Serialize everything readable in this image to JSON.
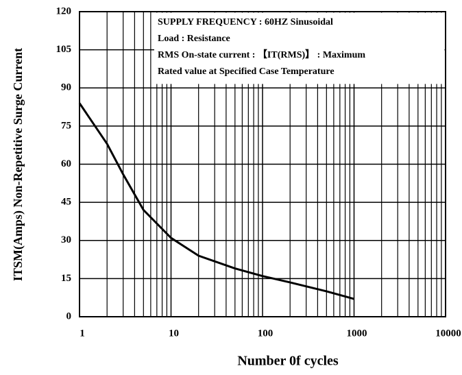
{
  "chart_data": {
    "type": "line",
    "xlabel": "Number 0f cycles",
    "ylabel": "ITSM(Amps) Non-Repetitive Surge Current",
    "annotations": [
      "SUPPLY FREQUENCY : 60HZ Sinusoidal",
      "Load : Resistance",
      "RMS On-state current : 【IT(RMS)】 : Maximum",
      "Rated value at Specified Case Temperature"
    ],
    "xlog": true,
    "grid": true,
    "x": [
      1,
      2,
      3,
      5,
      10,
      20,
      50,
      100,
      200,
      500,
      1000
    ],
    "series": [
      {
        "color": "#000000",
        "values": [
          84,
          68,
          56,
          42,
          31,
          24,
          19,
          16,
          13.5,
          10,
          7
        ]
      }
    ],
    "xlim": [
      1,
      10000
    ],
    "xticks": [
      1,
      10,
      100,
      1000,
      10000
    ],
    "ylim": [
      0,
      120
    ],
    "yticks": [
      0,
      15,
      30,
      45,
      60,
      75,
      90,
      105,
      120
    ]
  }
}
